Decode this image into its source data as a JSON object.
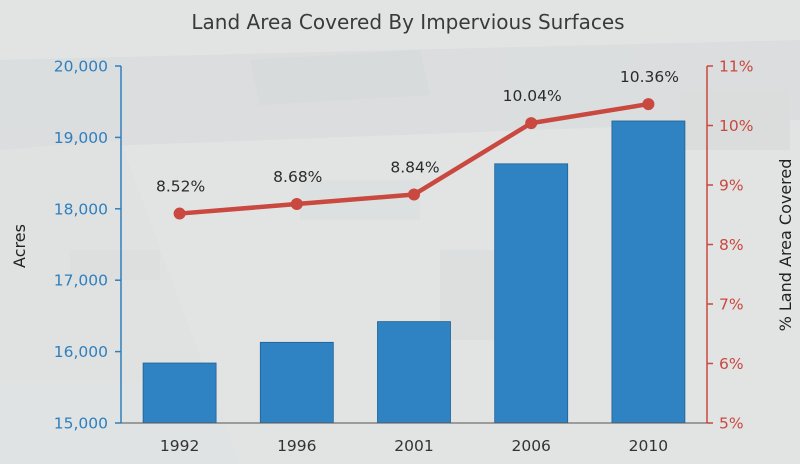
{
  "chart_data": {
    "type": "bar",
    "title": "Land Area Covered By Impervious Surfaces",
    "categories": [
      "1992",
      "1996",
      "2001",
      "2006",
      "2010"
    ],
    "series": [
      {
        "axis": "left",
        "type": "bar",
        "values": [
          15840,
          16130,
          16420,
          18630,
          19230
        ]
      },
      {
        "axis": "right",
        "type": "line",
        "values": [
          8.52,
          8.68,
          8.84,
          10.04,
          10.36
        ],
        "labels": [
          "8.52%",
          "8.68%",
          "8.84%",
          "10.04%",
          "10.36%"
        ]
      }
    ],
    "ylabel": "Acres",
    "ylim": [
      15000,
      20000
    ],
    "yticks": [
      "15,000",
      "16,000",
      "17,000",
      "18,000",
      "19,000",
      "20,000"
    ],
    "y2label": "% Land Area Covered",
    "y2lim": [
      5,
      11
    ],
    "y2ticks": [
      "5%",
      "6%",
      "7%",
      "8%",
      "9%",
      "10%",
      "11%"
    ],
    "grid": false,
    "colors": {
      "bar": "#2f83c2",
      "line": "#c9483f",
      "left_axis": "#2f7fbd",
      "right_axis": "#c9483f"
    }
  }
}
